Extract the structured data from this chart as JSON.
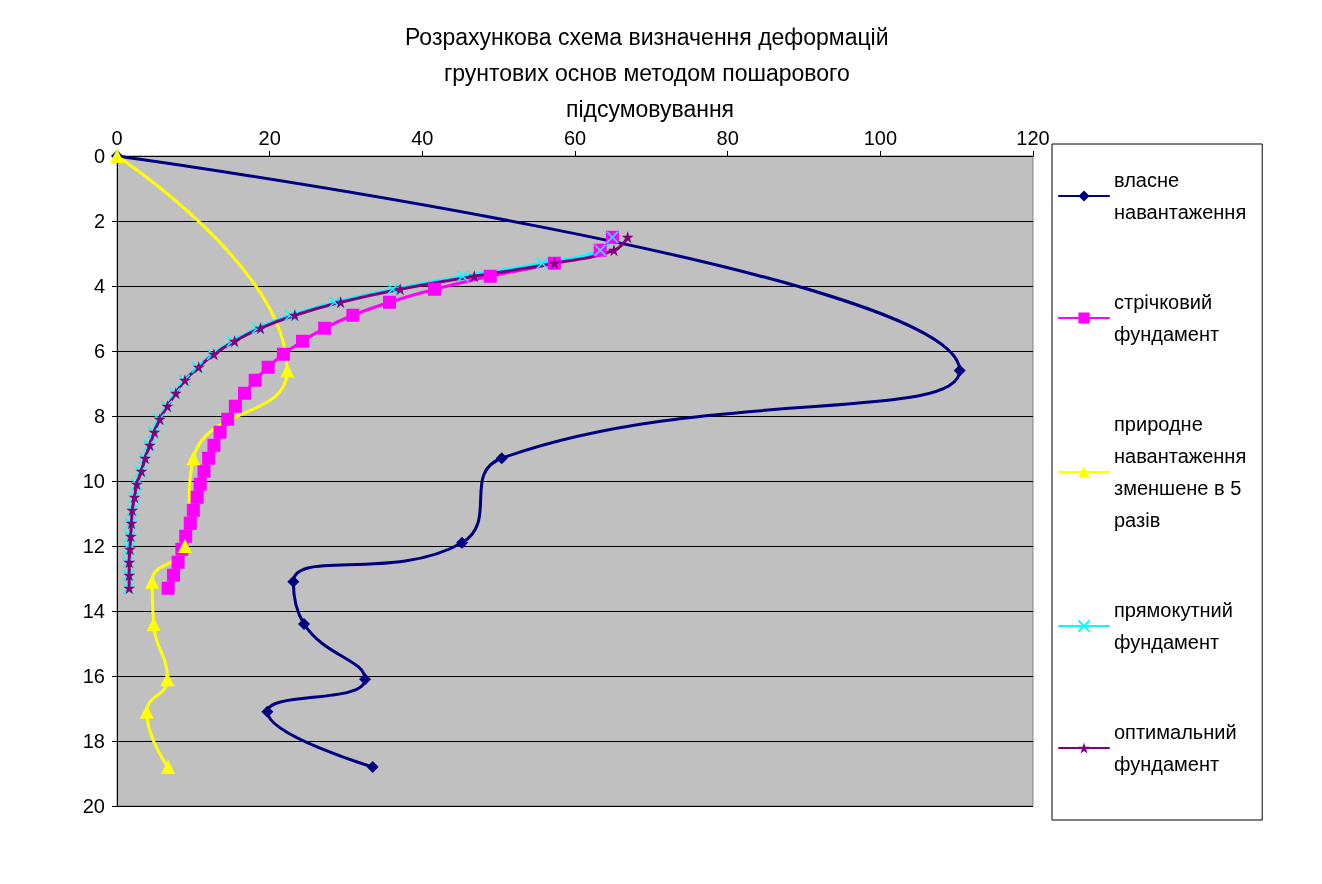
{
  "chart_data": {
    "type": "line",
    "title": "Розрахункова схема визначення деформацій грунтових основ методом пошарового підсумовування",
    "xlim": [
      0,
      120
    ],
    "xticks": [
      0,
      20,
      40,
      60,
      80,
      100,
      120
    ],
    "ylim": [
      20,
      0
    ],
    "yticks": [
      0,
      2,
      4,
      6,
      8,
      10,
      12,
      14,
      16,
      18,
      20
    ],
    "grid": "y",
    "legend": "right",
    "series": [
      {
        "name": "власне навантаження",
        "color": "#000080",
        "marker": "diamond",
        "x": [
          0,
          110.4,
          50.4,
          45.2,
          23.1,
          24.5,
          32.5,
          19.7,
          33.5
        ],
        "values": [
          0,
          6.6,
          9.3,
          11.9,
          13.1,
          14.4,
          16.1,
          17.1,
          18.8
        ]
      },
      {
        "name": "стрічковий фундамент",
        "color": "#ff00ff",
        "marker": "square",
        "x": [
          64.9,
          63.3,
          57.3,
          48.9,
          41.6,
          35.7,
          30.9,
          27.2,
          24.3,
          21.8,
          19.8,
          18.1,
          16.7,
          15.5,
          14.5,
          13.5,
          12.7,
          12.0,
          11.4,
          10.9,
          10.5,
          10.0,
          9.6,
          9.0,
          8.5,
          8.0,
          7.4,
          6.7
        ],
        "values": [
          2.5,
          2.9,
          3.3,
          3.7,
          4.1,
          4.5,
          4.9,
          5.3,
          5.7,
          6.1,
          6.5,
          6.9,
          7.3,
          7.7,
          8.1,
          8.5,
          8.9,
          9.3,
          9.7,
          10.1,
          10.5,
          10.9,
          11.3,
          11.7,
          12.1,
          12.5,
          12.9,
          13.3
        ]
      },
      {
        "name": "природне навантаження зменшене в 5 разів",
        "color": "#ffff00",
        "marker": "triangle",
        "x": [
          0,
          22.3,
          10.0,
          8.9,
          4.6,
          4.8,
          6.6,
          3.9,
          6.7
        ],
        "values": [
          0,
          6.6,
          9.3,
          12.0,
          13.1,
          14.4,
          16.1,
          17.1,
          18.8
        ]
      },
      {
        "name": "прямокутний фундамент",
        "color": "#00ffff",
        "marker": "cross",
        "x": [
          64.9,
          63.3,
          55.7,
          45.3,
          36.1,
          28.5,
          22.7,
          18.4,
          15.1,
          12.5,
          10.5,
          8.8,
          7.6,
          6.5,
          5.5,
          4.8,
          4.2,
          3.6,
          3.1,
          2.6,
          2.3,
          2.0,
          1.8,
          1.7,
          1.6,
          1.5,
          1.5,
          1.5
        ],
        "values": [
          2.5,
          2.9,
          3.3,
          3.7,
          4.1,
          4.5,
          4.9,
          5.3,
          5.7,
          6.1,
          6.5,
          6.9,
          7.3,
          7.7,
          8.1,
          8.5,
          8.9,
          9.3,
          9.7,
          10.1,
          10.5,
          10.9,
          11.3,
          11.7,
          12.1,
          12.5,
          12.9,
          13.3
        ]
      },
      {
        "name": "оптимальний фундамент",
        "color": "#800080",
        "marker": "star",
        "x": [
          66.9,
          65.1,
          57.3,
          46.8,
          37.1,
          29.3,
          23.3,
          18.8,
          15.4,
          12.7,
          10.7,
          8.9,
          7.7,
          6.6,
          5.6,
          4.9,
          4.3,
          3.7,
          3.2,
          2.6,
          2.3,
          2.0,
          1.9,
          1.8,
          1.7,
          1.6,
          1.6,
          1.6
        ],
        "values": [
          2.5,
          2.9,
          3.3,
          3.7,
          4.1,
          4.5,
          4.9,
          5.3,
          5.7,
          6.1,
          6.5,
          6.9,
          7.3,
          7.7,
          8.1,
          8.5,
          8.9,
          9.3,
          9.7,
          10.1,
          10.5,
          10.9,
          11.3,
          11.7,
          12.1,
          12.5,
          12.9,
          13.3
        ]
      }
    ]
  }
}
